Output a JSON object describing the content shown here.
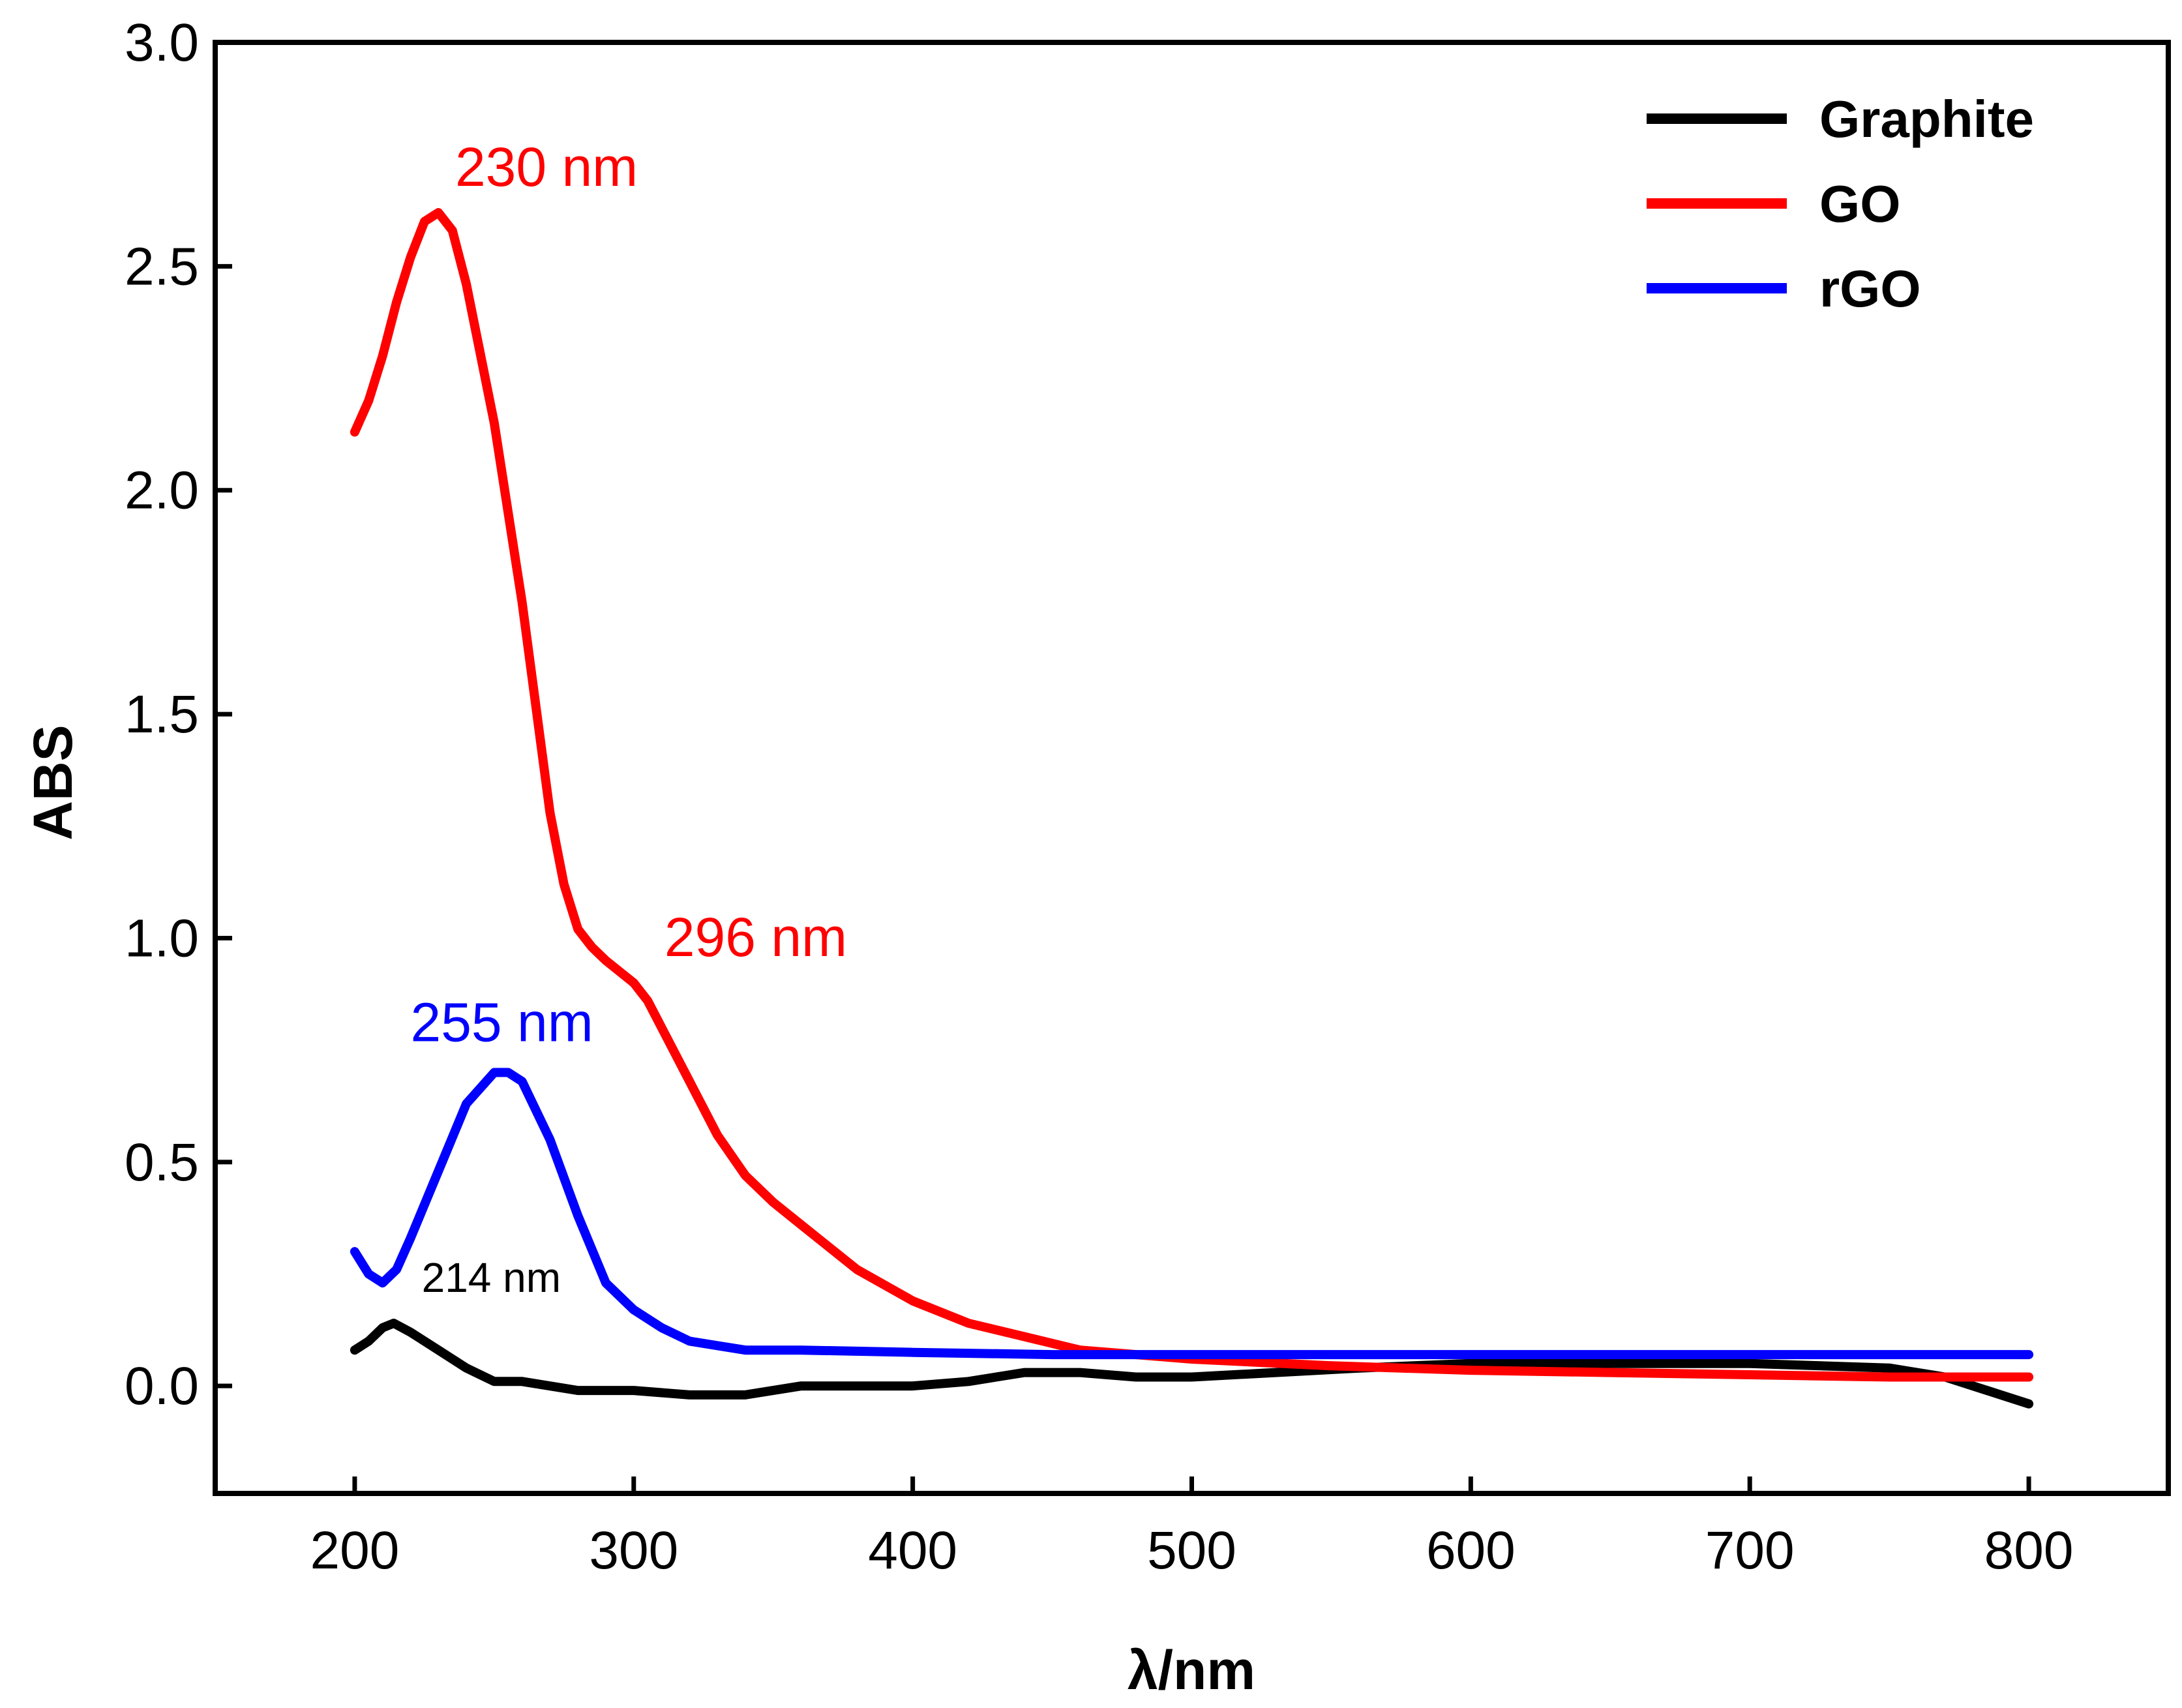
{
  "chart_data": {
    "type": "line",
    "title": "",
    "xlabel": "λ/nm",
    "ylabel": "ABS",
    "xlim": [
      150,
      850
    ],
    "ylim": [
      -0.24,
      3.0
    ],
    "xticks": [
      200,
      300,
      400,
      500,
      600,
      700,
      800
    ],
    "xtick_labels": [
      "200",
      "300",
      "400",
      "500",
      "600",
      "700",
      "800"
    ],
    "yticks": [
      0.0,
      0.5,
      1.0,
      1.5,
      2.0,
      2.5,
      3.0
    ],
    "ytick_labels": [
      "0.0",
      "0.5",
      "1.0",
      "1.5",
      "2.0",
      "2.5",
      "3.0"
    ],
    "grid": false,
    "legend_position": "top-right",
    "series": [
      {
        "name": "Graphite",
        "color": "#000000",
        "x": [
          200,
          205,
          210,
          214,
          220,
          230,
          240,
          250,
          260,
          280,
          300,
          320,
          340,
          360,
          380,
          400,
          420,
          440,
          460,
          480,
          500,
          530,
          560,
          600,
          650,
          700,
          750,
          770,
          790,
          800
        ],
        "y": [
          0.08,
          0.1,
          0.13,
          0.14,
          0.12,
          0.08,
          0.04,
          0.01,
          0.01,
          -0.01,
          -0.01,
          -0.02,
          -0.02,
          0.0,
          0.0,
          0.0,
          0.01,
          0.03,
          0.03,
          0.02,
          0.02,
          0.03,
          0.04,
          0.05,
          0.05,
          0.05,
          0.04,
          0.02,
          -0.02,
          -0.04
        ]
      },
      {
        "name": "GO",
        "color": "#ff0000",
        "x": [
          200,
          205,
          210,
          215,
          220,
          225,
          230,
          235,
          240,
          250,
          260,
          270,
          275,
          280,
          285,
          290,
          296,
          300,
          305,
          310,
          320,
          330,
          340,
          350,
          360,
          380,
          400,
          420,
          440,
          460,
          480,
          500,
          550,
          600,
          650,
          700,
          750,
          800
        ],
        "y": [
          2.13,
          2.2,
          2.3,
          2.42,
          2.52,
          2.6,
          2.62,
          2.58,
          2.46,
          2.15,
          1.75,
          1.28,
          1.12,
          1.02,
          0.98,
          0.95,
          0.92,
          0.9,
          0.86,
          0.8,
          0.68,
          0.56,
          0.47,
          0.41,
          0.36,
          0.26,
          0.19,
          0.14,
          0.11,
          0.08,
          0.07,
          0.06,
          0.045,
          0.035,
          0.03,
          0.025,
          0.02,
          0.02
        ]
      },
      {
        "name": "rGO",
        "color": "#0000ff",
        "x": [
          200,
          205,
          210,
          215,
          220,
          230,
          240,
          250,
          255,
          260,
          270,
          280,
          290,
          300,
          310,
          320,
          330,
          340,
          360,
          400,
          450,
          500,
          600,
          700,
          800
        ],
        "y": [
          0.3,
          0.25,
          0.23,
          0.26,
          0.33,
          0.48,
          0.63,
          0.7,
          0.7,
          0.68,
          0.55,
          0.38,
          0.23,
          0.17,
          0.13,
          0.1,
          0.09,
          0.08,
          0.08,
          0.075,
          0.07,
          0.07,
          0.07,
          0.07,
          0.07
        ]
      }
    ],
    "annotations": [
      {
        "text": "230 nm",
        "x": 236,
        "y": 2.68,
        "color": "#ff0000",
        "size": "large"
      },
      {
        "text": "296 nm",
        "x": 311,
        "y": 0.96,
        "color": "#ff0000",
        "size": "large"
      },
      {
        "text": "255 nm",
        "x": 220,
        "y": 0.77,
        "color": "#0000ff",
        "size": "large"
      },
      {
        "text": "214 nm",
        "x": 224,
        "y": 0.21,
        "color": "#000000",
        "size": "small"
      }
    ]
  }
}
